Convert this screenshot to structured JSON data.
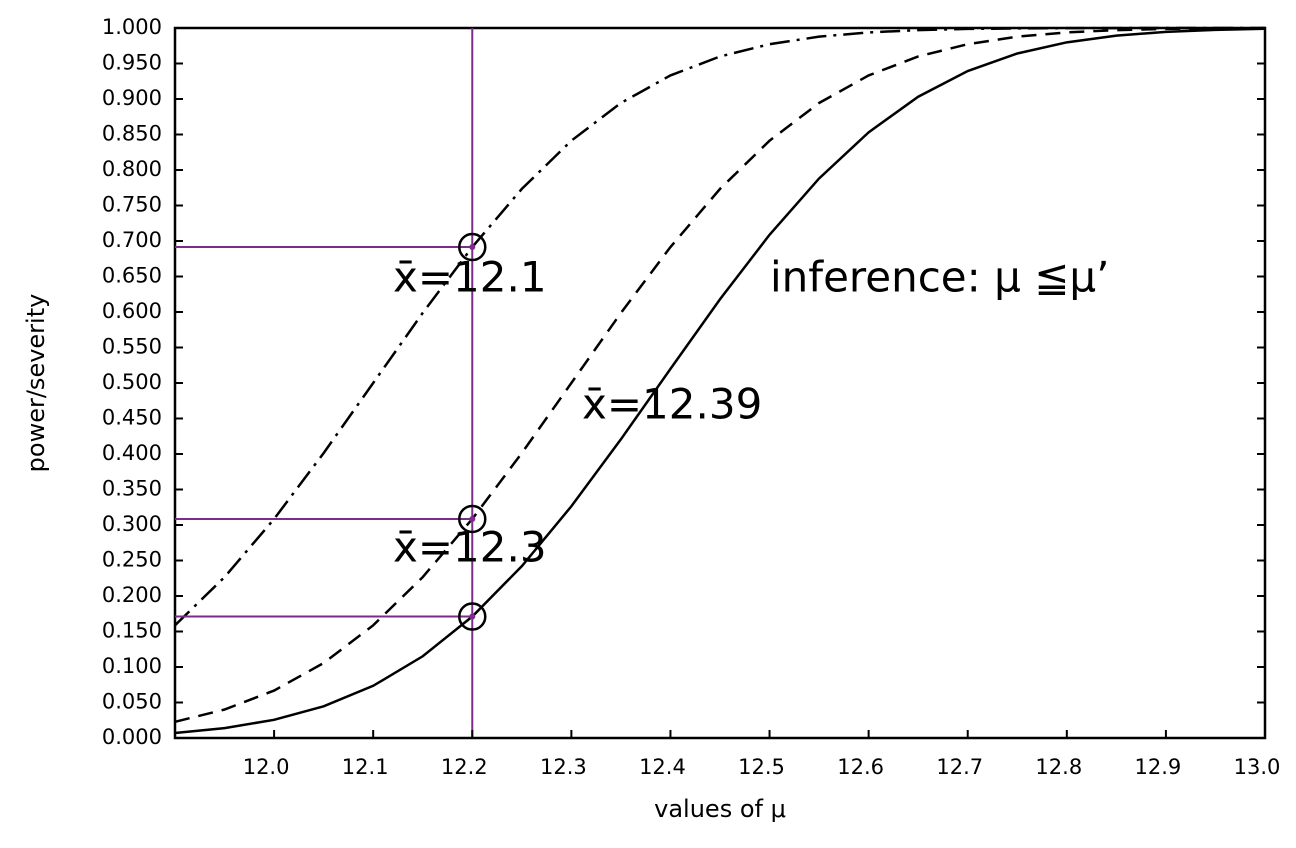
{
  "chart_data": {
    "type": "line",
    "x_label": "values of μ",
    "y_label": "power/severity",
    "annotations": [
      "x̄=12.1",
      "x̄=12.3",
      "x̄=12.39",
      "inference: μ ≦μ’"
    ],
    "xlim": [
      11.9,
      13.0
    ],
    "ylim": [
      0,
      1
    ],
    "xticks": [
      {
        "value": 12.0,
        "label": "12.0"
      },
      {
        "value": 12.1,
        "label": "12.1"
      },
      {
        "value": 12.2,
        "label": "12.2"
      },
      {
        "value": 12.3,
        "label": "12.3"
      },
      {
        "value": 12.4,
        "label": "12.4"
      },
      {
        "value": 12.5,
        "label": "12.5"
      },
      {
        "value": 12.6,
        "label": "12.6"
      },
      {
        "value": 12.7,
        "label": "12.7"
      },
      {
        "value": 12.8,
        "label": "12.8"
      },
      {
        "value": 12.9,
        "label": "12.9"
      },
      {
        "value": 13.0,
        "label": "13.0"
      }
    ],
    "yticks": [
      {
        "value": 0,
        "label": "0.000"
      },
      {
        "value": 0.05,
        "label": "0.050"
      },
      {
        "value": 0.1,
        "label": "0.100"
      },
      {
        "value": 0.15,
        "label": "0.150"
      },
      {
        "value": 0.2,
        "label": "0.200"
      },
      {
        "value": 0.25,
        "label": "0.250"
      },
      {
        "value": 0.3,
        "label": "0.300"
      },
      {
        "value": 0.35,
        "label": "0.350"
      },
      {
        "value": 0.4,
        "label": "0.400"
      },
      {
        "value": 0.45,
        "label": "0.450"
      },
      {
        "value": 0.5,
        "label": "0.500"
      },
      {
        "value": 0.55,
        "label": "0.550"
      },
      {
        "value": 0.6,
        "label": "0.600"
      },
      {
        "value": 0.65,
        "label": "0.650"
      },
      {
        "value": 0.7,
        "label": "0.700"
      },
      {
        "value": 0.75,
        "label": "0.750"
      },
      {
        "value": 0.8,
        "label": "0.800"
      },
      {
        "value": 0.85,
        "label": "0.850"
      },
      {
        "value": 0.9,
        "label": "0.900"
      },
      {
        "value": 0.95,
        "label": "0.950"
      },
      {
        "value": 1,
        "label": "1.000"
      }
    ],
    "reference_x": 12.2,
    "reference_color": "#7d2a8c",
    "x": [
      11.9,
      11.95,
      12.0,
      12.05,
      12.1,
      12.15,
      12.2,
      12.25,
      12.3,
      12.35,
      12.4,
      12.45,
      12.5,
      12.55,
      12.6,
      12.65,
      12.7,
      12.75,
      12.8,
      12.85,
      12.9,
      12.95,
      13.0
    ],
    "series": [
      {
        "color": "#000000",
        "style": "dashdot",
        "values": [
          0.1587,
          0.2266,
          0.3085,
          0.4013,
          0.5,
          0.5987,
          0.6915,
          0.7734,
          0.8413,
          0.8944,
          0.9332,
          0.9599,
          0.9772,
          0.9878,
          0.9938,
          0.997,
          0.9987,
          0.9994,
          0.9998,
          0.9999,
          1,
          1,
          1
        ]
      },
      {
        "color": "#000000",
        "style": "dashed",
        "values": [
          0.0228,
          0.0401,
          0.0668,
          0.1056,
          0.1587,
          0.2266,
          0.3085,
          0.4013,
          0.5,
          0.5987,
          0.6915,
          0.7734,
          0.8413,
          0.8944,
          0.9332,
          0.9599,
          0.9772,
          0.9878,
          0.9938,
          0.997,
          0.9987,
          0.9994,
          0.9998
        ]
      },
      {
        "color": "#000000",
        "style": "solid",
        "values": [
          0.0071,
          0.0139,
          0.0256,
          0.0446,
          0.0735,
          0.1151,
          0.1711,
          0.242,
          0.3264,
          0.4207,
          0.5199,
          0.6179,
          0.7088,
          0.7881,
          0.8531,
          0.9032,
          0.9394,
          0.9641,
          0.9798,
          0.9893,
          0.9946,
          0.9974,
          0.9989
        ]
      }
    ]
  }
}
